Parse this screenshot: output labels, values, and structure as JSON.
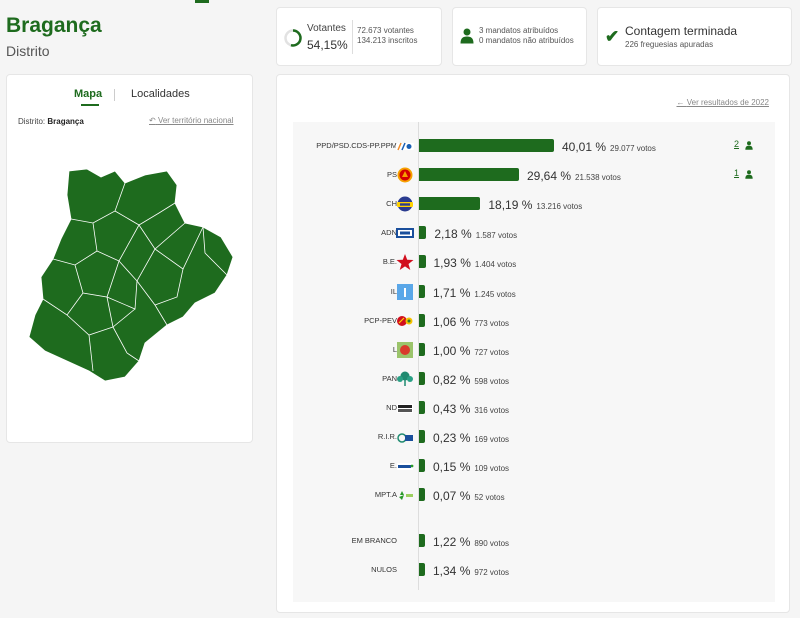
{
  "header": {
    "title": "Bragança",
    "subtitle": "Distrito"
  },
  "stats": {
    "votantes_label": "Votantes",
    "votantes_pct": "54,15%",
    "votantes_count": "72.673 votantes",
    "inscritos_count": "134.213 inscritos",
    "mandatos_atribuidos": "3 mandatos atribuídos",
    "mandatos_nao_atribuidos": "0 mandatos não atribuídos",
    "contagem_title": "Contagem terminada",
    "freguesias": "226 freguesias apuradas"
  },
  "map": {
    "tabs": [
      "Mapa",
      "Localidades"
    ],
    "distrito_label": "Distrito:",
    "distrito_value": "Bragança",
    "national_link": "Ver território nacional",
    "fill_color": "#1e6b1e"
  },
  "results": {
    "link_2022": "Ver resultados de 2022",
    "accent_color": "#1e6b1e",
    "rows": [
      {
        "name": "PPD/PSD.CDS-PP.PPM",
        "pct": "40,01 %",
        "votes": "29.077 votos",
        "value": 40.01,
        "seats": "2",
        "logo": "ad-logo"
      },
      {
        "name": "PS",
        "pct": "29,64 %",
        "votes": "21.538 votos",
        "value": 29.64,
        "seats": "1",
        "logo": "ps-logo"
      },
      {
        "name": "CH",
        "pct": "18,19 %",
        "votes": "13.216 votos",
        "value": 18.19,
        "seats": "",
        "logo": "chega-logo"
      },
      {
        "name": "ADN",
        "pct": "2,18 %",
        "votes": "1.587 votos",
        "value": 2.18,
        "seats": "",
        "logo": "adn-logo"
      },
      {
        "name": "B.E.",
        "pct": "1,93 %",
        "votes": "1.404 votos",
        "value": 1.93,
        "seats": "",
        "logo": "be-star-logo"
      },
      {
        "name": "IL",
        "pct": "1,71 %",
        "votes": "1.245 votos",
        "value": 1.71,
        "seats": "",
        "logo": "il-logo"
      },
      {
        "name": "PCP-PEV",
        "pct": "1,06 %",
        "votes": "773 votos",
        "value": 1.06,
        "seats": "",
        "logo": "cdu-logo"
      },
      {
        "name": "L",
        "pct": "1,00 %",
        "votes": "727 votos",
        "value": 1.0,
        "seats": "",
        "logo": "livre-logo"
      },
      {
        "name": "PAN",
        "pct": "0,82 %",
        "votes": "598 votos",
        "value": 0.82,
        "seats": "",
        "logo": "pan-logo"
      },
      {
        "name": "ND",
        "pct": "0,43 %",
        "votes": "316 votos",
        "value": 0.43,
        "seats": "",
        "logo": "nd-logo"
      },
      {
        "name": "R.I.R.",
        "pct": "0,23 %",
        "votes": "169 votos",
        "value": 0.23,
        "seats": "",
        "logo": "rir-logo"
      },
      {
        "name": "E.",
        "pct": "0,15 %",
        "votes": "109 votos",
        "value": 0.15,
        "seats": "",
        "logo": "ergue-te-logo"
      },
      {
        "name": "MPT.A",
        "pct": "0,07 %",
        "votes": "52 votos",
        "value": 0.07,
        "seats": "",
        "logo": "mpt-logo"
      }
    ],
    "extra_rows": [
      {
        "name": "EM BRANCO",
        "pct": "1,22 %",
        "votes": "890 votos",
        "value": 1.22
      },
      {
        "name": "NULOS",
        "pct": "1,34 %",
        "votes": "972 votos",
        "value": 1.34
      }
    ]
  }
}
